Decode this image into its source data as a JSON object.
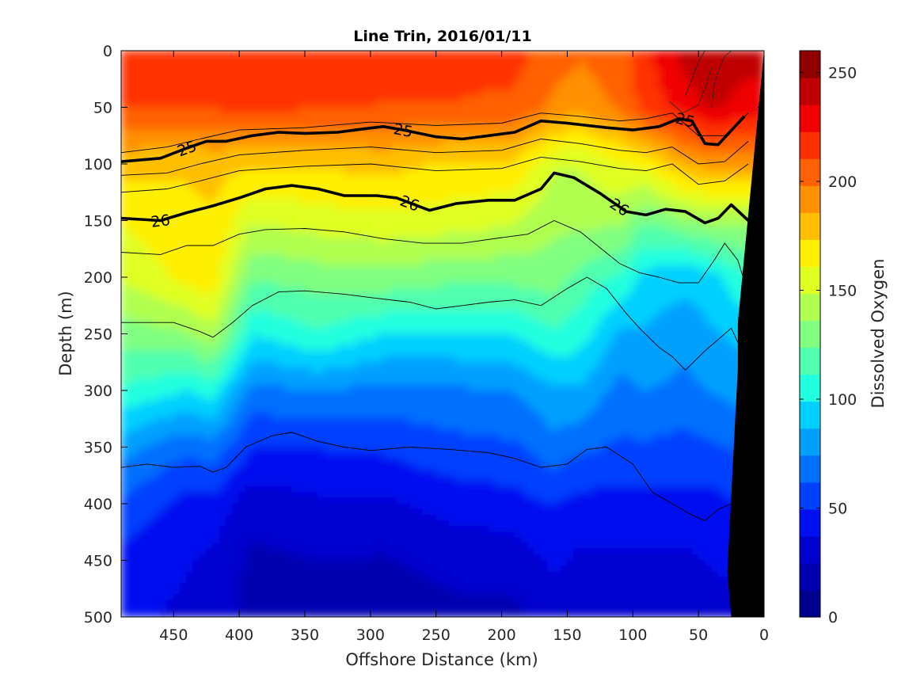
{
  "chart_data": {
    "type": "heatmap",
    "title": "Line Trin, 2016/01/11",
    "xlabel": "Offshore Distance (km)",
    "ylabel": "Depth (m)",
    "colorbar_label": "Dissolved Oxygen",
    "x_reversed": true,
    "y_reversed": true,
    "xlim": [
      0,
      490
    ],
    "ylim": [
      0,
      500
    ],
    "x_ticks": [
      450,
      400,
      350,
      300,
      250,
      200,
      150,
      100,
      50,
      0
    ],
    "y_ticks": [
      0,
      50,
      100,
      150,
      200,
      250,
      300,
      350,
      400,
      450,
      500
    ],
    "colorbar_range": [
      0,
      260
    ],
    "colorbar_ticks": [
      0,
      50,
      100,
      150,
      200,
      250
    ],
    "colorbar_colors": [
      "#00008f",
      "#0000b0",
      "#0000cf",
      "#0010f0",
      "#0040ff",
      "#0070ff",
      "#00a0ff",
      "#00d0ff",
      "#20ffdf",
      "#50ffaf",
      "#80ff80",
      "#b0ff50",
      "#e0ff20",
      "#ffef00",
      "#ffbf00",
      "#ff9000",
      "#ff6000",
      "#ff3000",
      "#f00000",
      "#c00000",
      "#900000"
    ],
    "oxygen_profiles": {
      "x_stations": [
        490,
        440,
        420,
        390,
        340,
        290,
        240,
        190,
        160,
        140,
        110,
        90,
        60,
        40,
        15
      ],
      "depths": [
        0,
        50,
        100,
        150,
        200,
        250,
        300,
        350,
        400,
        450,
        500
      ],
      "values": [
        [
          215,
          212,
          178,
          162,
          150,
          130,
          110,
          80,
          60,
          45,
          40
        ],
        [
          215,
          212,
          175,
          170,
          165,
          135,
          100,
          65,
          45,
          38,
          35
        ],
        [
          215,
          212,
          178,
          172,
          170,
          145,
          105,
          70,
          45,
          35,
          32
        ],
        [
          215,
          213,
          175,
          150,
          125,
          100,
          70,
          50,
          30,
          22,
          20
        ],
        [
          215,
          212,
          175,
          155,
          130,
          110,
          75,
          50,
          35,
          25,
          18
        ],
        [
          215,
          210,
          178,
          158,
          132,
          100,
          70,
          52,
          35,
          24,
          18
        ],
        [
          215,
          210,
          172,
          155,
          128,
          98,
          72,
          58,
          42,
          28,
          22
        ],
        [
          215,
          208,
          172,
          150,
          128,
          100,
          75,
          60,
          45,
          30,
          22
        ],
        [
          205,
          195,
          150,
          140,
          130,
          110,
          85,
          70,
          50,
          40,
          30
        ],
        [
          200,
          190,
          150,
          140,
          120,
          105,
          85,
          65,
          45,
          35,
          32
        ],
        [
          205,
          200,
          160,
          140,
          110,
          85,
          70,
          60,
          45,
          35,
          32
        ],
        [
          220,
          215,
          165,
          125,
          95,
          85,
          75,
          60,
          45,
          35,
          30
        ],
        [
          240,
          228,
          185,
          135,
          90,
          80,
          70,
          58,
          45,
          35,
          30
        ],
        [
          248,
          238,
          190,
          140,
          95,
          85,
          75,
          60,
          45,
          38,
          32
        ],
        [
          240,
          230,
          190,
          140,
          110,
          90,
          80,
          65,
          50,
          40,
          35
        ]
      ]
    },
    "density_contours": [
      {
        "level": "25",
        "labels_at_x": [
          440,
          275,
          60
        ],
        "points": [
          [
            490,
            98
          ],
          [
            460,
            95
          ],
          [
            440,
            86
          ],
          [
            425,
            80
          ],
          [
            410,
            80
          ],
          [
            390,
            75
          ],
          [
            370,
            72
          ],
          [
            350,
            73
          ],
          [
            325,
            72
          ],
          [
            305,
            69
          ],
          [
            290,
            67
          ],
          [
            275,
            70
          ],
          [
            250,
            76
          ],
          [
            230,
            78
          ],
          [
            210,
            75
          ],
          [
            190,
            72
          ],
          [
            170,
            62
          ],
          [
            150,
            64
          ],
          [
            120,
            68
          ],
          [
            100,
            70
          ],
          [
            80,
            67
          ],
          [
            65,
            60
          ],
          [
            55,
            62
          ],
          [
            45,
            82
          ],
          [
            35,
            83
          ],
          [
            15,
            58
          ]
        ]
      },
      {
        "level": "26",
        "labels_at_x": [
          460,
          270,
          110
        ],
        "points": [
          [
            490,
            148
          ],
          [
            460,
            150
          ],
          [
            440,
            143
          ],
          [
            420,
            137
          ],
          [
            400,
            130
          ],
          [
            380,
            122
          ],
          [
            360,
            119
          ],
          [
            340,
            122
          ],
          [
            320,
            128
          ],
          [
            295,
            128
          ],
          [
            280,
            130
          ],
          [
            255,
            141
          ],
          [
            235,
            135
          ],
          [
            210,
            132
          ],
          [
            190,
            132
          ],
          [
            170,
            122
          ],
          [
            160,
            108
          ],
          [
            145,
            112
          ],
          [
            125,
            126
          ],
          [
            105,
            142
          ],
          [
            90,
            145
          ],
          [
            75,
            140
          ],
          [
            60,
            142
          ],
          [
            45,
            152
          ],
          [
            35,
            148
          ],
          [
            25,
            136
          ],
          [
            12,
            150
          ]
        ]
      }
    ],
    "thin_contours": [
      [
        [
          490,
          90
        ],
        [
          455,
          85
        ],
        [
          430,
          78
        ],
        [
          400,
          70
        ],
        [
          350,
          68
        ],
        [
          300,
          63
        ],
        [
          250,
          66
        ],
        [
          200,
          64
        ],
        [
          170,
          55
        ],
        [
          140,
          58
        ],
        [
          110,
          62
        ],
        [
          90,
          60
        ],
        [
          70,
          55
        ],
        [
          50,
          75
        ],
        [
          30,
          75
        ],
        [
          12,
          55
        ]
      ],
      [
        [
          490,
          110
        ],
        [
          455,
          108
        ],
        [
          430,
          100
        ],
        [
          400,
          92
        ],
        [
          350,
          88
        ],
        [
          300,
          85
        ],
        [
          250,
          90
        ],
        [
          200,
          88
        ],
        [
          170,
          78
        ],
        [
          140,
          82
        ],
        [
          110,
          88
        ],
        [
          90,
          90
        ],
        [
          70,
          85
        ],
        [
          50,
          100
        ],
        [
          30,
          98
        ],
        [
          12,
          80
        ]
      ],
      [
        [
          490,
          125
        ],
        [
          455,
          122
        ],
        [
          430,
          115
        ],
        [
          400,
          106
        ],
        [
          350,
          102
        ],
        [
          300,
          100
        ],
        [
          250,
          106
        ],
        [
          200,
          104
        ],
        [
          170,
          94
        ],
        [
          140,
          98
        ],
        [
          110,
          104
        ],
        [
          90,
          106
        ],
        [
          70,
          100
        ],
        [
          50,
          118
        ],
        [
          30,
          115
        ],
        [
          12,
          100
        ]
      ],
      [
        [
          490,
          178
        ],
        [
          460,
          180
        ],
        [
          440,
          172
        ],
        [
          420,
          172
        ],
        [
          400,
          162
        ],
        [
          380,
          158
        ],
        [
          350,
          157
        ],
        [
          320,
          160
        ],
        [
          290,
          166
        ],
        [
          260,
          170
        ],
        [
          230,
          170
        ],
        [
          200,
          165
        ],
        [
          180,
          162
        ],
        [
          160,
          150
        ],
        [
          140,
          160
        ],
        [
          110,
          188
        ],
        [
          95,
          196
        ],
        [
          80,
          200
        ],
        [
          65,
          205
        ],
        [
          50,
          205
        ],
        [
          38,
          185
        ],
        [
          30,
          170
        ],
        [
          20,
          185
        ],
        [
          12,
          215
        ]
      ],
      [
        [
          490,
          240
        ],
        [
          450,
          240
        ],
        [
          430,
          248
        ],
        [
          420,
          253
        ],
        [
          405,
          240
        ],
        [
          390,
          225
        ],
        [
          370,
          213
        ],
        [
          350,
          212
        ],
        [
          320,
          215
        ],
        [
          300,
          218
        ],
        [
          270,
          222
        ],
        [
          250,
          228
        ],
        [
          230,
          225
        ],
        [
          210,
          222
        ],
        [
          190,
          220
        ],
        [
          170,
          225
        ],
        [
          150,
          210
        ],
        [
          135,
          200
        ],
        [
          120,
          210
        ],
        [
          105,
          232
        ],
        [
          95,
          245
        ],
        [
          80,
          262
        ],
        [
          70,
          270
        ],
        [
          60,
          282
        ],
        [
          45,
          265
        ],
        [
          35,
          255
        ],
        [
          25,
          245
        ],
        [
          15,
          270
        ]
      ],
      [
        [
          490,
          368
        ],
        [
          470,
          365
        ],
        [
          450,
          368
        ],
        [
          430,
          367
        ],
        [
          420,
          372
        ],
        [
          410,
          368
        ],
        [
          395,
          350
        ],
        [
          375,
          340
        ],
        [
          360,
          337
        ],
        [
          340,
          345
        ],
        [
          320,
          350
        ],
        [
          300,
          353
        ],
        [
          270,
          350
        ],
        [
          240,
          352
        ],
        [
          210,
          355
        ],
        [
          190,
          360
        ],
        [
          170,
          368
        ],
        [
          150,
          365
        ],
        [
          135,
          352
        ],
        [
          120,
          350
        ],
        [
          100,
          365
        ],
        [
          85,
          390
        ],
        [
          70,
          400
        ],
        [
          55,
          410
        ],
        [
          45,
          415
        ],
        [
          35,
          405
        ],
        [
          25,
          400
        ],
        [
          15,
          410
        ]
      ]
    ],
    "white_contours": [
      [
        [
          40,
          50
        ],
        [
          38,
          30
        ],
        [
          34,
          15
        ],
        [
          30,
          5
        ],
        [
          25,
          0
        ]
      ],
      [
        [
          60,
          40
        ],
        [
          55,
          25
        ],
        [
          50,
          10
        ],
        [
          45,
          0
        ]
      ],
      [
        [
          72,
          45
        ],
        [
          62,
          55
        ],
        [
          50,
          48
        ],
        [
          44,
          30
        ],
        [
          40,
          15
        ]
      ]
    ],
    "bathymetry": [
      [
        0,
        0
      ],
      [
        0,
        500
      ],
      [
        25,
        500
      ],
      [
        28,
        460
      ],
      [
        20,
        280
      ],
      [
        20,
        240
      ],
      [
        0,
        0
      ]
    ]
  }
}
